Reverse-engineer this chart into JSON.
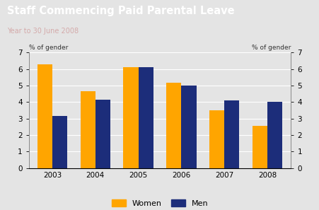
{
  "title": "Staff Commencing Paid Parental Leave",
  "subtitle": "Year to 30 June 2008",
  "title_bg_color": "#7B1F1F",
  "title_text_color": "#FFFFFF",
  "subtitle_text_color": "#D4AAAA",
  "chart_bg_color": "#E4E4E4",
  "ylabel_left": "% of gender",
  "ylabel_right": "% of gender",
  "years": [
    "2003",
    "2004",
    "2005",
    "2006",
    "2007",
    "2008"
  ],
  "women_values": [
    6.3,
    4.65,
    6.1,
    5.15,
    3.5,
    2.55
  ],
  "men_values": [
    3.15,
    4.15,
    6.1,
    5.0,
    4.1,
    4.0
  ],
  "women_color": "#FFA500",
  "men_color": "#1C2D7A",
  "ylim": [
    0,
    7
  ],
  "yticks": [
    0,
    1,
    2,
    3,
    4,
    5,
    6,
    7
  ],
  "legend_women": "Women",
  "legend_men": "Men",
  "bar_width": 0.35
}
